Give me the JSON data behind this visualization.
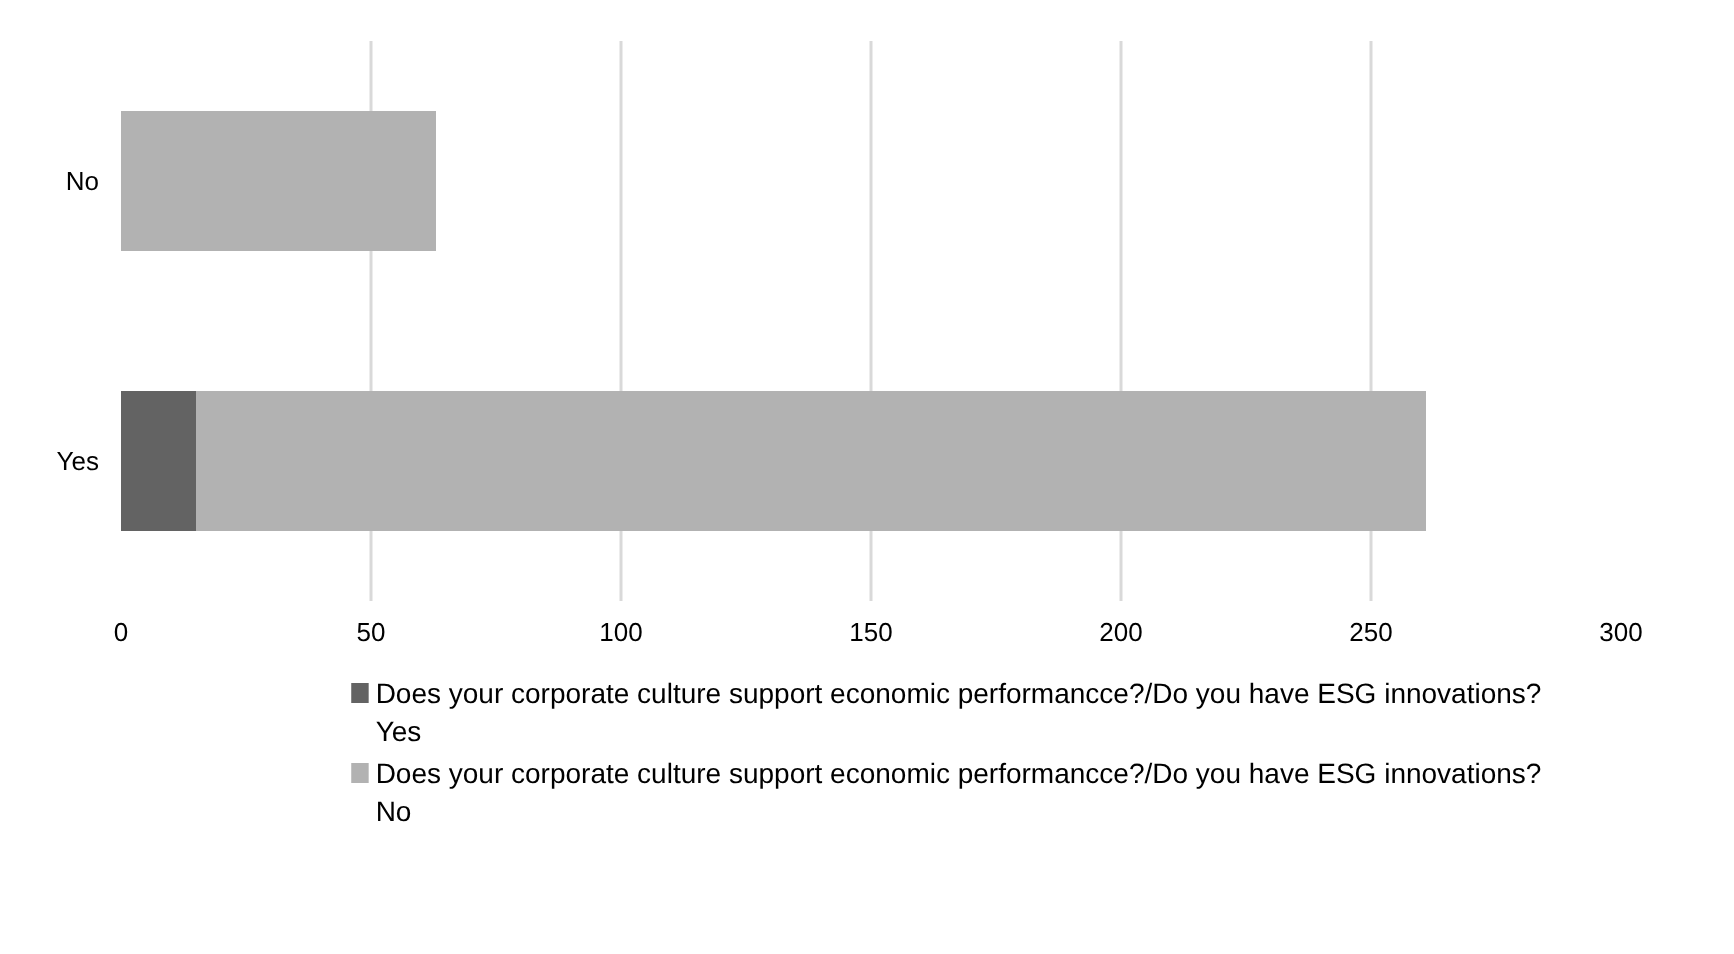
{
  "chart_data": {
    "type": "bar",
    "orientation": "horizontal",
    "stacked": true,
    "categories": [
      "No",
      "Yes"
    ],
    "series": [
      {
        "name": "Does your corporate culture support economic performancce?/Do you have ESG innovations? Yes",
        "color": "#636363",
        "values": [
          0,
          15
        ]
      },
      {
        "name": "Does your corporate culture support economic performancce?/Do you have ESG innovations? No",
        "color": "#b2b2b2",
        "values": [
          63,
          246
        ]
      }
    ],
    "xlim": [
      0,
      300
    ],
    "xticks": [
      0,
      50,
      100,
      150,
      200,
      250,
      300
    ],
    "grid": "x",
    "legend": "bottom"
  }
}
